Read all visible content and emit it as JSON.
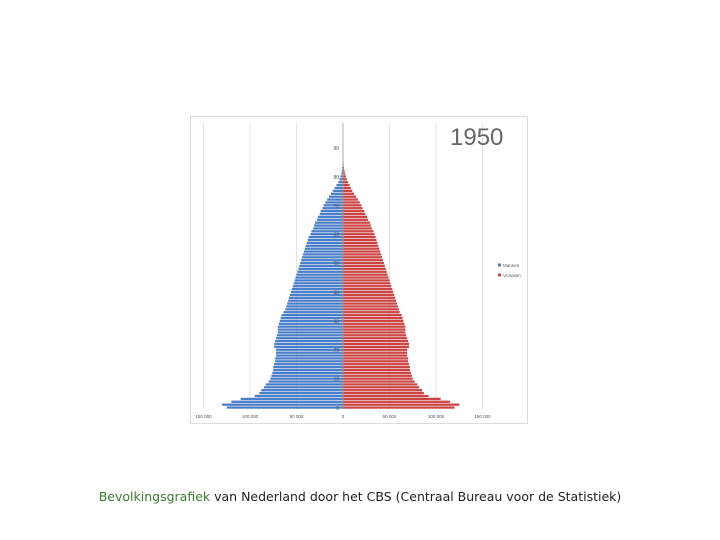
{
  "chart_data": {
    "type": "bar",
    "orientation": "horizontal",
    "layout": "population-pyramid",
    "title": "1950",
    "age_ticks": [
      "0",
      "10",
      "20",
      "30",
      "40",
      "50",
      "60",
      "70",
      "80",
      "90"
    ],
    "x_ticks": [
      "150 000",
      "100 000",
      "50 000",
      "0",
      "50 000",
      "100 000",
      "150 000"
    ],
    "x_tick_values": [
      -150000,
      -100000,
      -50000,
      0,
      50000,
      100000,
      150000
    ],
    "xlim": [
      -150000,
      150000
    ],
    "ylim": [
      0,
      90
    ],
    "grid": true,
    "legend_position": "right",
    "series": [
      {
        "name": "Mannen",
        "color": "#4a7fc9",
        "values": [
          125000,
          130000,
          120000,
          110000,
          95000,
          90000,
          88000,
          85000,
          83000,
          80000,
          78000,
          77000,
          76000,
          75000,
          75000,
          74000,
          73000,
          73000,
          72000,
          72000,
          72000,
          74000,
          74000,
          73000,
          72000,
          71000,
          70000,
          70000,
          70000,
          69000,
          68000,
          67000,
          66000,
          64000,
          62000,
          61000,
          60000,
          59000,
          58000,
          57000,
          56000,
          55000,
          54000,
          53000,
          52000,
          51000,
          50000,
          49000,
          48000,
          47000,
          46000,
          45000,
          44000,
          43000,
          42000,
          41000,
          40000,
          39000,
          38000,
          37000,
          35000,
          34000,
          32000,
          31000,
          30000,
          28000,
          27000,
          25000,
          24000,
          22000,
          21000,
          19000,
          17000,
          15000,
          13000,
          11000,
          9000,
          7000,
          5000,
          3800,
          2800,
          1800,
          1200,
          800,
          500,
          300,
          150,
          80,
          30,
          10
        ]
      },
      {
        "name": "Vrouwen",
        "color": "#cc4444",
        "values": [
          120000,
          125000,
          115000,
          105000,
          92000,
          87000,
          85000,
          82000,
          80000,
          77000,
          75000,
          74000,
          73000,
          72000,
          72000,
          71000,
          70000,
          70000,
          69000,
          69000,
          69000,
          71000,
          71000,
          70000,
          69000,
          68000,
          67000,
          67000,
          67000,
          66000,
          65000,
          64000,
          63000,
          61000,
          60000,
          59000,
          58000,
          57000,
          56000,
          55000,
          54000,
          53000,
          52000,
          51000,
          50000,
          49000,
          48000,
          47000,
          46000,
          45000,
          44000,
          43000,
          42000,
          41000,
          40000,
          39000,
          38000,
          37000,
          36000,
          35000,
          34000,
          33000,
          31000,
          30000,
          29000,
          27000,
          26000,
          24000,
          23000,
          21000,
          20000,
          18000,
          16000,
          14000,
          12000,
          10000,
          8500,
          7000,
          5500,
          4200,
          3200,
          2300,
          1600,
          1100,
          700,
          450,
          250,
          120,
          50,
          20
        ]
      }
    ],
    "legend": [
      "Mannen",
      "Vrouwen"
    ]
  },
  "caption": {
    "part1": "Bevolkingsgrafiek",
    "part2": " van Nederland door het CBS (Centraal Bureau voor de Statistiek)"
  },
  "colors": {
    "male": "#4a7fc9",
    "female": "#cc4444",
    "axis": "#9a9a9a",
    "grid": "#e3e3e3"
  }
}
